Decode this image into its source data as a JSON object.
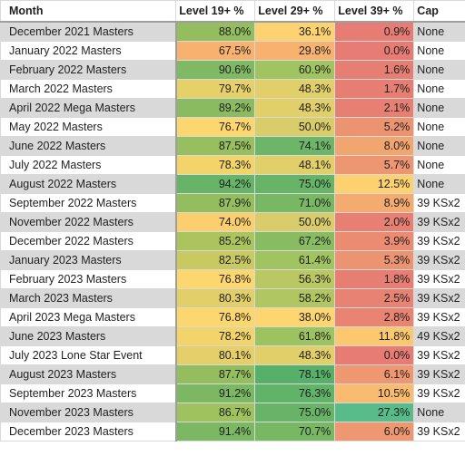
{
  "columns": {
    "month": "Month",
    "level19": "Level 19+ %",
    "level29": "Level 29+ %",
    "level39": "Level 39+ %",
    "cap": "Cap"
  },
  "rows": [
    {
      "month": "December 2021 Masters",
      "l19": "88.0%",
      "l29": "36.1%",
      "l39": "0.9%",
      "cap": "None",
      "c19": "#93bd5f",
      "c29": "#fdd371",
      "c39": "#e67c73"
    },
    {
      "month": "January 2022 Masters",
      "l19": "67.5%",
      "l29": "29.8%",
      "l39": "0.0%",
      "cap": "None",
      "c19": "#f7b26f",
      "c29": "#f7b26f",
      "c39": "#e67c73"
    },
    {
      "month": "February 2022 Masters",
      "l19": "90.6%",
      "l29": "60.9%",
      "l39": "1.6%",
      "cap": "None",
      "c19": "#80b964",
      "c29": "#a0c45f",
      "c39": "#e67e73"
    },
    {
      "month": "March 2022 Masters",
      "l19": "79.7%",
      "l29": "48.3%",
      "l39": "1.7%",
      "cap": "None",
      "c19": "#e6d06a",
      "c29": "#e1cf6a",
      "c39": "#e67e73"
    },
    {
      "month": "April 2022 Mega Masters",
      "l19": "89.2%",
      "l29": "48.3%",
      "l39": "2.1%",
      "cap": "None",
      "c19": "#8bbb61",
      "c29": "#e1cf6a",
      "c39": "#e78073"
    },
    {
      "month": "May 2022 Masters",
      "l19": "76.7%",
      "l29": "50.0%",
      "l39": "5.2%",
      "cap": "None",
      "c19": "#fcd66f",
      "c29": "#d9cc6b",
      "c39": "#ec9371"
    },
    {
      "month": "June 2022 Masters",
      "l19": "87.5%",
      "l29": "74.1%",
      "l39": "8.0%",
      "cap": "None",
      "c19": "#97be5f",
      "c29": "#6db667",
      "c39": "#f2a66f"
    },
    {
      "month": "July 2022 Masters",
      "l19": "78.3%",
      "l29": "48.1%",
      "l39": "5.7%",
      "cap": "None",
      "c19": "#f2d46b",
      "c29": "#e1cf6a",
      "c39": "#ed9672"
    },
    {
      "month": "August 2022 Masters",
      "l19": "94.2%",
      "l29": "75.0%",
      "l39": "12.5%",
      "cap": "None",
      "c19": "#67b468",
      "c29": "#67b468",
      "c39": "#fdd16f"
    },
    {
      "month": "September 2022 Masters",
      "l19": "87.9%",
      "l29": "71.0%",
      "l39": "8.9%",
      "cap": "39 KSx2",
      "c19": "#93bd5f",
      "c29": "#78b865",
      "c39": "#f4ab6f"
    },
    {
      "month": "November 2022 Masters",
      "l19": "74.0%",
      "l29": "50.0%",
      "l39": "2.0%",
      "cap": "39 KSx2",
      "c19": "#fccf6e",
      "c29": "#d9cc6b",
      "c39": "#e78073"
    },
    {
      "month": "December 2022 Masters",
      "l19": "85.2%",
      "l29": "67.2%",
      "l39": "3.9%",
      "cap": "39 KSx2",
      "c19": "#abc45d",
      "c29": "#88bb62",
      "c39": "#ea8b72"
    },
    {
      "month": "January 2023 Masters",
      "l19": "82.5%",
      "l29": "61.4%",
      "l39": "5.3%",
      "cap": "39 KSx2",
      "c19": "#c8ca61",
      "c29": "#a0c45f",
      "c39": "#ec9371"
    },
    {
      "month": "February 2023 Masters",
      "l19": "76.8%",
      "l29": "56.3%",
      "l39": "1.8%",
      "cap": "39 KSx2",
      "c19": "#fcd66f",
      "c29": "#bac863",
      "c39": "#e67e73"
    },
    {
      "month": "March 2023 Masters",
      "l19": "80.3%",
      "l29": "58.2%",
      "l39": "2.5%",
      "cap": "39 KSx2",
      "c19": "#e2cf6a",
      "c29": "#afc661",
      "c39": "#e88373"
    },
    {
      "month": "April 2023 Mega Masters",
      "l19": "76.8%",
      "l29": "38.0%",
      "l39": "2.8%",
      "cap": "39 KSx2",
      "c19": "#fcd66f",
      "c29": "#fdd671",
      "c39": "#e98473"
    },
    {
      "month": "June 2023 Masters",
      "l19": "78.2%",
      "l29": "61.8%",
      "l39": "11.8%",
      "cap": "49 KSx2",
      "c19": "#f2d46b",
      "c29": "#9cc360",
      "c39": "#fbc86f"
    },
    {
      "month": "July 2023 Lone Star Event",
      "l19": "80.1%",
      "l29": "48.3%",
      "l39": "0.0%",
      "cap": "39 KSx2",
      "c19": "#e4cf6a",
      "c29": "#e1cf6a",
      "c39": "#e67c73"
    },
    {
      "month": "August 2023 Masters",
      "l19": "87.7%",
      "l29": "78.1%",
      "l39": "6.1%",
      "cap": "39 KSx2",
      "c19": "#93bd5f",
      "c29": "#57b06a",
      "c39": "#ee9771"
    },
    {
      "month": "September 2023 Masters",
      "l19": "91.2%",
      "l29": "76.3%",
      "l39": "10.5%",
      "cap": "39 KSx2",
      "c19": "#7cb864",
      "c29": "#60b369",
      "c39": "#f8bb6f"
    },
    {
      "month": "November 2023 Masters",
      "l19": "86.7%",
      "l29": "75.0%",
      "l39": "27.3%",
      "cap": "None",
      "c19": "#9fc15e",
      "c29": "#67b468",
      "c39": "#57bb8a"
    },
    {
      "month": "December 2023 Masters",
      "l19": "91.4%",
      "l29": "70.7%",
      "l39": "6.0%",
      "cap": "39 KSx2",
      "c19": "#7cb864",
      "c29": "#78b865",
      "c39": "#ee9771"
    }
  ]
}
